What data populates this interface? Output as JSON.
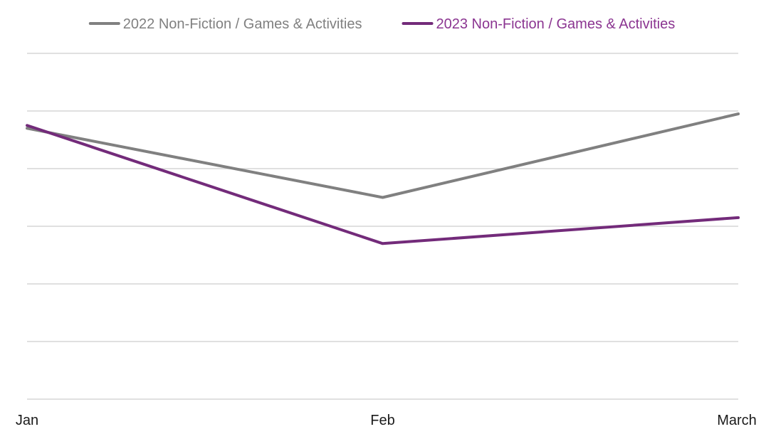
{
  "chart_data": {
    "type": "line",
    "title": "",
    "xlabel": "",
    "ylabel": "",
    "categories": [
      "Jan",
      "Feb",
      "March"
    ],
    "ylim": [
      0,
      6
    ],
    "y_ticks_visible": false,
    "grid": true,
    "legend_position": "top",
    "series": [
      {
        "name": "2022 Non-Fiction / Games & Activities",
        "values": [
          4.7,
          3.5,
          4.95
        ],
        "color": "#808080",
        "legend_text_color": "#808080"
      },
      {
        "name": "2023 Non-Fiction / Games & Activities",
        "values": [
          4.75,
          2.7,
          3.15
        ],
        "color": "#732b7a",
        "legend_text_color": "#8b3591"
      }
    ]
  }
}
